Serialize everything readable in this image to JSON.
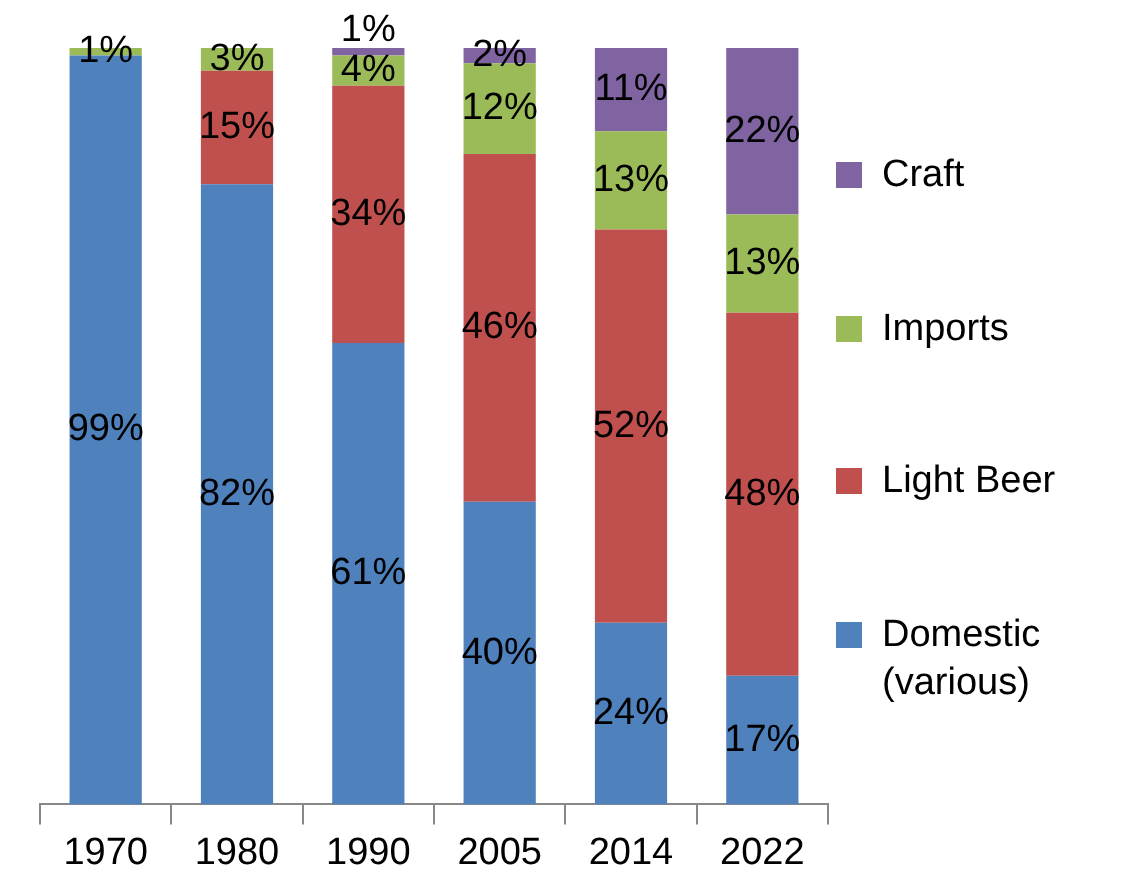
{
  "chart_data": {
    "type": "bar",
    "stacked": true,
    "tick_labels": "x",
    "legend": "right",
    "categories": [
      "1970",
      "1980",
      "1990",
      "2005",
      "2014",
      "2022"
    ],
    "series": [
      {
        "name": "Domestic (various)",
        "color": "#4f81bd",
        "values": [
          99,
          82,
          61,
          40,
          24,
          17
        ],
        "value_labels": [
          "99%",
          "82%",
          "61%",
          "40%",
          "24%",
          "17%"
        ]
      },
      {
        "name": "Light Beer",
        "color": "#c0504d",
        "values": [
          null,
          15,
          34,
          46,
          52,
          48
        ],
        "value_labels": [
          null,
          "15%",
          "34%",
          "46%",
          "52%",
          "48%"
        ]
      },
      {
        "name": "Imports",
        "color": "#9bbb59",
        "values": [
          1,
          3,
          4,
          12,
          13,
          13
        ],
        "value_labels": [
          "1%",
          "3%",
          "4%",
          "12%",
          "13%",
          "13%"
        ]
      },
      {
        "name": "Craft",
        "color": "#8064a2",
        "values": [
          null,
          null,
          1,
          2,
          11,
          22
        ],
        "value_labels": [
          null,
          null,
          "1%",
          "2%",
          "11%",
          "22%"
        ]
      }
    ]
  }
}
